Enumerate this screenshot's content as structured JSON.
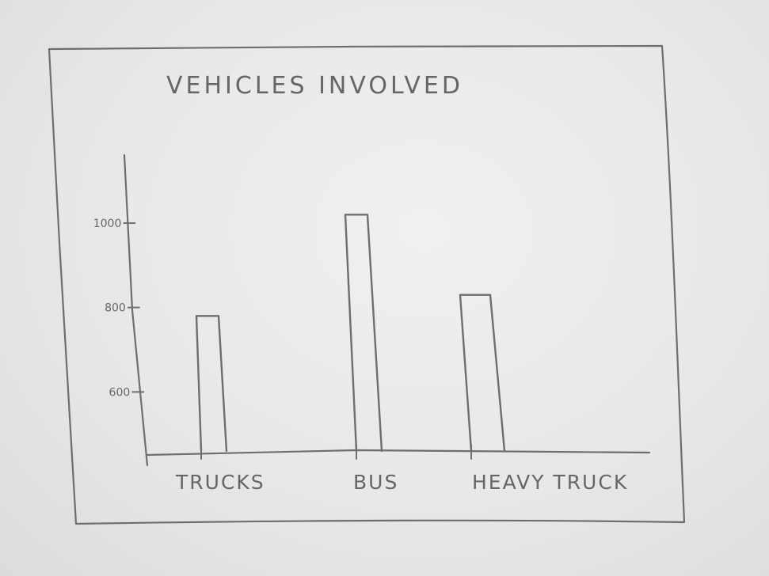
{
  "colors": {
    "paper": "#eeedeb",
    "pencil": "#6e6e6e"
  },
  "chart_data": {
    "type": "bar",
    "title": "VEHICLES INVOLVED",
    "xlabel": "",
    "ylabel": "",
    "categories": [
      "TRUCKS",
      "BUS",
      "HEAVY TRUCK"
    ],
    "values": [
      780,
      1020,
      830
    ],
    "yticks": [
      {
        "value": 600,
        "label": "600"
      },
      {
        "value": 800,
        "label": "800"
      },
      {
        "value": 1000,
        "label": "1000"
      }
    ],
    "ylim": [
      460,
      1060
    ],
    "grid": false,
    "legend": "none"
  }
}
